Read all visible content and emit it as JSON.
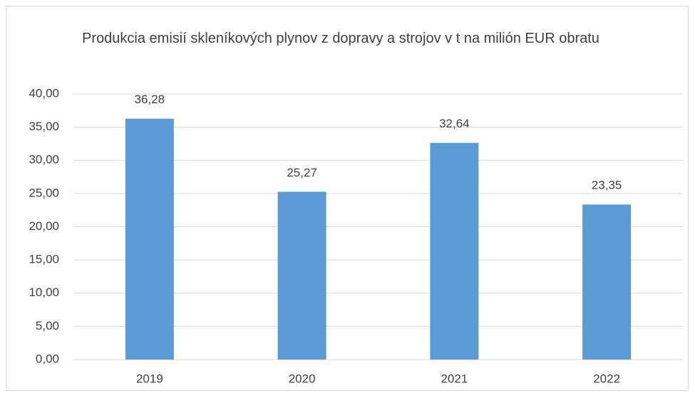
{
  "chart_data": {
    "type": "bar",
    "title": "Produkcia emisií skleníkových plynov z dopravy a strojov v t na milión EUR obratu",
    "categories": [
      "2019",
      "2020",
      "2021",
      "2022"
    ],
    "values": [
      36.28,
      25.27,
      32.64,
      23.35
    ],
    "value_labels": [
      "36,28",
      "25,27",
      "32,64",
      "23,35"
    ],
    "color": "#5b9bd5",
    "ylim": [
      0,
      40
    ],
    "yticks": [
      {
        "value": 0,
        "label": "0,00"
      },
      {
        "value": 5,
        "label": "5,00"
      },
      {
        "value": 10,
        "label": "10,00"
      },
      {
        "value": 15,
        "label": "15,00"
      },
      {
        "value": 20,
        "label": "20,00"
      },
      {
        "value": 25,
        "label": "25,00"
      },
      {
        "value": 30,
        "label": "30,00"
      },
      {
        "value": 35,
        "label": "35,00"
      },
      {
        "value": 40,
        "label": "40,00"
      }
    ],
    "grid": true
  }
}
